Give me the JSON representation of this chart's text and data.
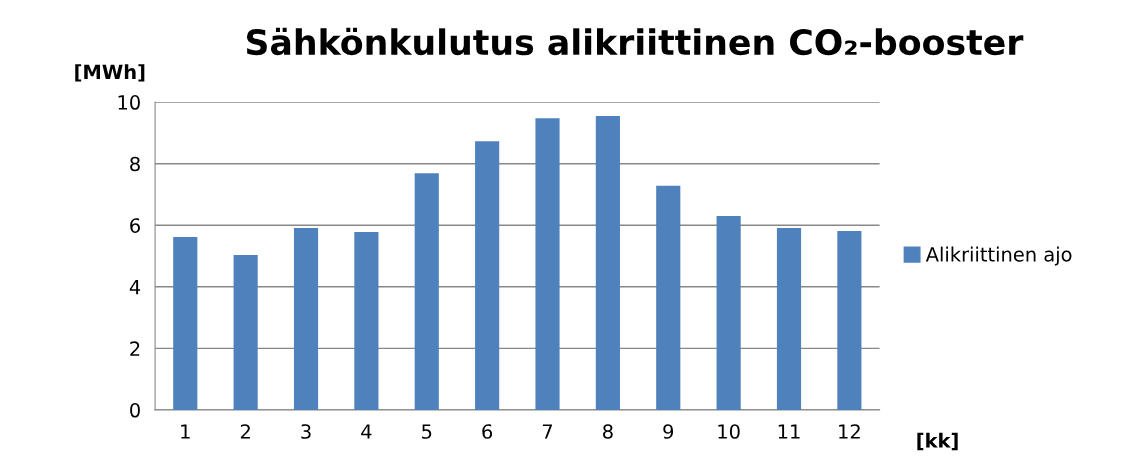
{
  "chart_data": {
    "type": "bar",
    "title": "Sähkönkulutus alikriittinen CO₂-booster",
    "ylabel": "[MWh]",
    "xlabel": "[kk]",
    "categories": [
      "1",
      "2",
      "3",
      "4",
      "5",
      "6",
      "7",
      "8",
      "9",
      "10",
      "11",
      "12"
    ],
    "series": [
      {
        "name": "Alikriittinen ajo",
        "color": "#4f81bd",
        "values": [
          5.62,
          5.03,
          5.91,
          5.78,
          7.69,
          8.73,
          9.48,
          9.55,
          7.28,
          6.3,
          5.91,
          5.81
        ]
      }
    ],
    "ylim": [
      0,
      10
    ],
    "yticks": [
      0,
      2,
      4,
      6,
      8,
      10
    ],
    "grid": "y",
    "legend": "right"
  }
}
